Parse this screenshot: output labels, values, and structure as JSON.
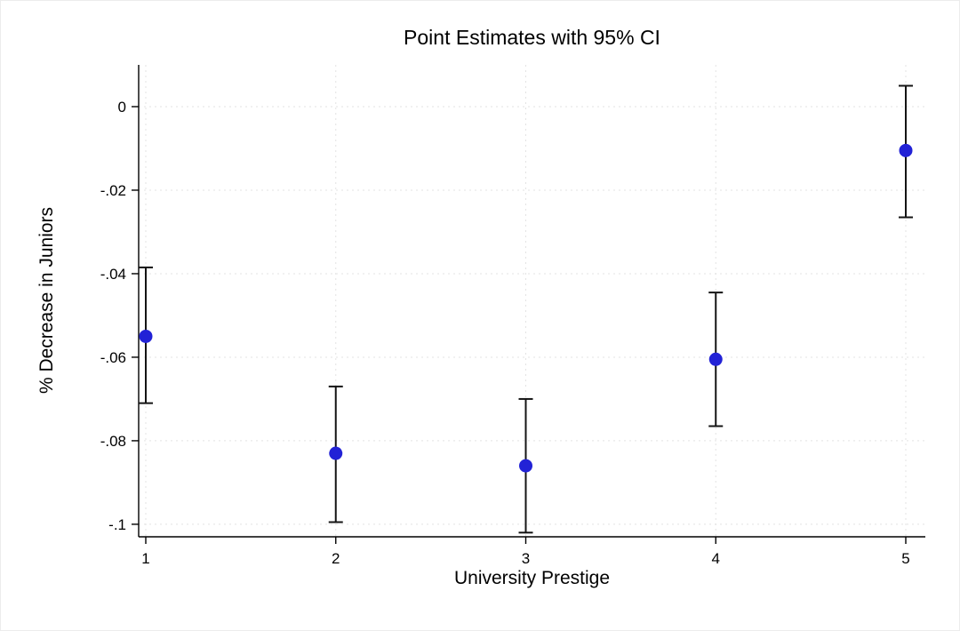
{
  "chart_data": {
    "type": "scatter",
    "title": "Point Estimates with 95% CI",
    "xlabel": "University Prestige",
    "ylabel": "% Decrease in Juniors",
    "categories": [
      "1",
      "2",
      "3",
      "4",
      "5"
    ],
    "series": [
      {
        "name": "Point estimate with 95% confidence interval",
        "values": [
          -0.055,
          -0.083,
          -0.086,
          -0.0605,
          -0.0105
        ],
        "ci_high": [
          -0.0385,
          -0.067,
          -0.07,
          -0.0445,
          0.005
        ],
        "ci_low": [
          -0.071,
          -0.0995,
          -0.102,
          -0.0765,
          -0.0265
        ]
      }
    ],
    "ylim": [
      -0.103,
      0.01
    ],
    "yticks": [
      0,
      -0.02,
      -0.04,
      -0.06,
      -0.08,
      -0.1
    ],
    "ytick_labels": [
      "0",
      "-.02",
      "-.04",
      "-.06",
      "-.08",
      "-.1"
    ],
    "grid": true,
    "legend_position": "none",
    "marker_color": "#2222d6",
    "error_bar_color": "#141414",
    "axis_color": "#000000",
    "grid_color": "#e3e3e3"
  }
}
